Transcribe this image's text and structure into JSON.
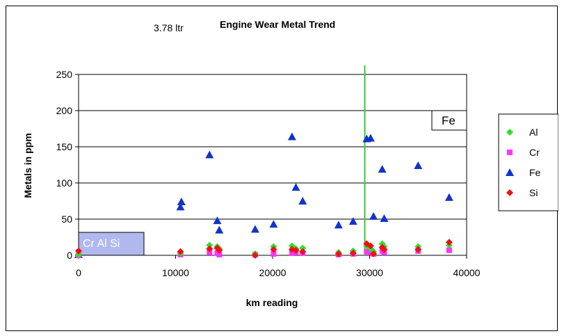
{
  "chart_data": {
    "type": "scatter",
    "title": "Engine Wear Metal Trend",
    "subtitle": "3.78 ltr",
    "xlabel": "km reading",
    "ylabel": "Metals in ppm",
    "xlim": [
      0,
      40000
    ],
    "ylim": [
      0,
      250
    ],
    "x_ticks": [
      "0",
      "10000",
      "20000",
      "30000",
      "40000"
    ],
    "y_ticks": [
      "0",
      "50",
      "100",
      "150",
      "200",
      "250"
    ],
    "grid": "horizontal",
    "legend_position": "right",
    "reference_line": {
      "x": 29500,
      "color": "#33cc33"
    },
    "reference_box_label": "Fe",
    "bottom_box_label": "Cr Al Si",
    "series": [
      {
        "name": "Al",
        "color": "#33dd33",
        "marker": "diamond",
        "points": [
          [
            0,
            1
          ],
          [
            10500,
            3
          ],
          [
            13500,
            14
          ],
          [
            14300,
            12
          ],
          [
            14500,
            9
          ],
          [
            18200,
            2
          ],
          [
            20100,
            12
          ],
          [
            22000,
            13
          ],
          [
            22400,
            9
          ],
          [
            23100,
            10
          ],
          [
            26800,
            4
          ],
          [
            28300,
            6
          ],
          [
            29700,
            13
          ],
          [
            30100,
            9
          ],
          [
            30400,
            5
          ],
          [
            31300,
            16
          ],
          [
            31500,
            12
          ],
          [
            35000,
            12
          ],
          [
            38200,
            14
          ]
        ]
      },
      {
        "name": "Cr",
        "color": "#ff33ff",
        "marker": "square",
        "points": [
          [
            0,
            0
          ],
          [
            10500,
            1
          ],
          [
            13500,
            4
          ],
          [
            14300,
            3
          ],
          [
            14500,
            1
          ],
          [
            18200,
            1
          ],
          [
            20100,
            2
          ],
          [
            22000,
            3
          ],
          [
            22400,
            4
          ],
          [
            23100,
            3
          ],
          [
            26800,
            1
          ],
          [
            28300,
            2
          ],
          [
            29700,
            5
          ],
          [
            30100,
            4
          ],
          [
            30400,
            2
          ],
          [
            31300,
            6
          ],
          [
            31500,
            4
          ],
          [
            35000,
            6
          ],
          [
            38200,
            7
          ]
        ]
      },
      {
        "name": "Fe",
        "color": "#1133cc",
        "marker": "triangle",
        "points": [
          [
            0,
            1
          ],
          [
            10500,
            67
          ],
          [
            10600,
            74
          ],
          [
            13500,
            139
          ],
          [
            14300,
            48
          ],
          [
            14500,
            35
          ],
          [
            18200,
            36
          ],
          [
            20100,
            43
          ],
          [
            22000,
            164
          ],
          [
            22400,
            94
          ],
          [
            23100,
            75
          ],
          [
            26800,
            42
          ],
          [
            28300,
            47
          ],
          [
            29700,
            161
          ],
          [
            30100,
            162
          ],
          [
            30400,
            54
          ],
          [
            31300,
            119
          ],
          [
            31500,
            51
          ],
          [
            35000,
            124
          ],
          [
            38200,
            80
          ]
        ]
      },
      {
        "name": "Si",
        "color": "#ee1111",
        "marker": "diamond",
        "points": [
          [
            0,
            6
          ],
          [
            10500,
            5
          ],
          [
            13500,
            9
          ],
          [
            14300,
            10
          ],
          [
            14500,
            7
          ],
          [
            18200,
            0
          ],
          [
            20100,
            8
          ],
          [
            22000,
            8
          ],
          [
            22400,
            7
          ],
          [
            23100,
            5
          ],
          [
            26800,
            2
          ],
          [
            28300,
            3
          ],
          [
            29700,
            16
          ],
          [
            30100,
            13
          ],
          [
            30400,
            2
          ],
          [
            31300,
            11
          ],
          [
            31500,
            8
          ],
          [
            35000,
            8
          ],
          [
            38200,
            18
          ]
        ]
      }
    ]
  }
}
